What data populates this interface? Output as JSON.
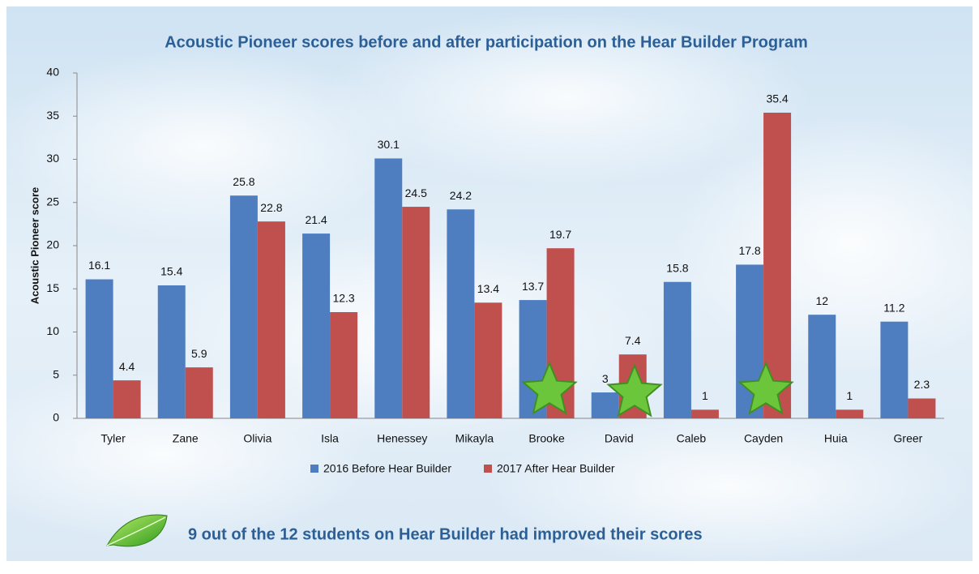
{
  "chart_data": {
    "type": "bar",
    "title": "Acoustic Pioneer scores before and after participation on the Hear Builder Program",
    "y_label": "Acoustic Pioneer score",
    "categories": [
      "Tyler",
      "Zane",
      "Olivia",
      "Isla",
      "Henessey",
      "Mikayla",
      "Brooke",
      "David",
      "Caleb",
      "Cayden",
      "Huia",
      "Greer"
    ],
    "series": [
      {
        "name": "2016 Before Hear Builder",
        "color": "#4f7ec0",
        "values": [
          16.1,
          15.4,
          25.8,
          21.4,
          30.1,
          24.2,
          13.7,
          3,
          15.8,
          17.8,
          12,
          11.2
        ]
      },
      {
        "name": "2017 After Hear Builder",
        "color": "#c0504d",
        "values": [
          4.4,
          5.9,
          22.8,
          12.3,
          24.5,
          13.4,
          19.7,
          7.4,
          1,
          35.4,
          1,
          2.3
        ]
      }
    ],
    "ylim": [
      0,
      40
    ],
    "yticks": [
      0,
      5,
      10,
      15,
      20,
      25,
      30,
      35,
      40
    ],
    "grid": false,
    "legend": "bottom",
    "annotation": "9 out of the 12 students on Hear Builder had improved their scores"
  }
}
